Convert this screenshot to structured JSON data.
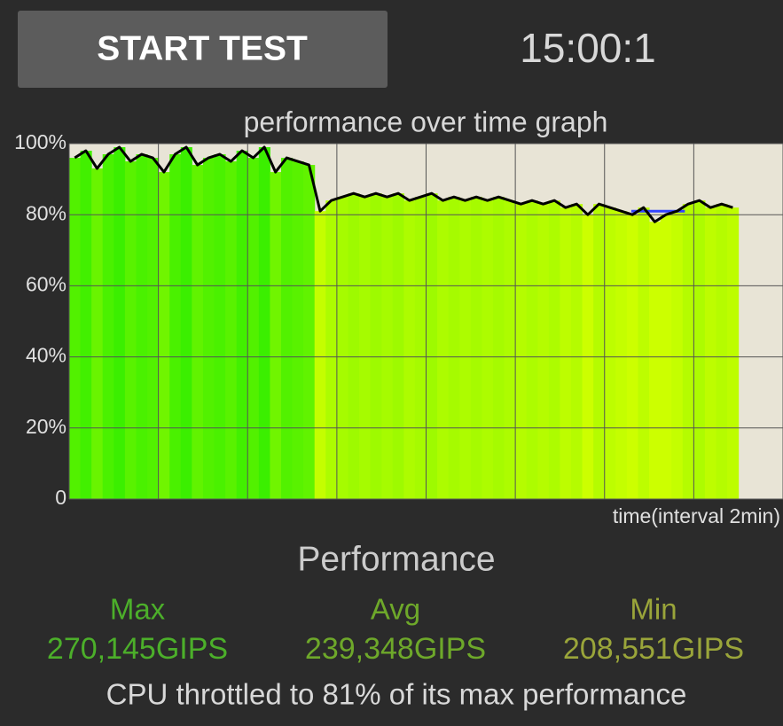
{
  "button": {
    "label": "START TEST"
  },
  "timer": "15:00:1",
  "chart_data": {
    "type": "line",
    "title": "performance over time graph",
    "x_label": "time(interval 2min)",
    "x": [
      0,
      0.25,
      0.5,
      0.75,
      1,
      1.25,
      1.5,
      1.75,
      2,
      2.25,
      2.5,
      2.75,
      3,
      3.25,
      3.5,
      3.75,
      4,
      4.25,
      4.5,
      4.75,
      5,
      5.25,
      5.5,
      5.75,
      6,
      6.25,
      6.5,
      6.75,
      7,
      7.25,
      7.5,
      7.75,
      8,
      8.25,
      8.5,
      8.75,
      9,
      9.25,
      9.5,
      9.75,
      10,
      10.25,
      10.5,
      10.75,
      11,
      11.25,
      11.5,
      11.75,
      12,
      12.25,
      12.5,
      12.75,
      13,
      13.25,
      13.5,
      13.75,
      14,
      14.25,
      14.5,
      14.75
    ],
    "series": [
      {
        "color": "#000000",
        "values": [
          96,
          98,
          93,
          97,
          99,
          95,
          97,
          96,
          92,
          97,
          99,
          94,
          96,
          97,
          95,
          98,
          96,
          99,
          92,
          96,
          95,
          94,
          81,
          84,
          85,
          86,
          85,
          86,
          85,
          86,
          84,
          85,
          86,
          84,
          85,
          84,
          85,
          84,
          85,
          84,
          83,
          84,
          83,
          84,
          82,
          83,
          80,
          83,
          82,
          81,
          80,
          82,
          78,
          80,
          81,
          83,
          84,
          82,
          83,
          82
        ]
      }
    ],
    "reference": {
      "value": 81,
      "x": [
        12.6,
        13.8
      ],
      "color": "#3344ff"
    },
    "fill_color_high": "#33ee00",
    "fill_color_low": "#ccff00",
    "xlim": [
      0,
      16
    ],
    "xticks": [
      0,
      2,
      4,
      6,
      8,
      10,
      12,
      14,
      16
    ],
    "ylim": [
      0,
      100
    ],
    "yticks": [
      0,
      {
        "value": 20,
        "label": "20%"
      },
      {
        "value": 40,
        "label": "40%"
      },
      {
        "value": 60,
        "label": "60%"
      },
      {
        "value": 80,
        "label": "80%"
      },
      {
        "value": 100,
        "label": "100%"
      }
    ],
    "grid": true
  },
  "performance": {
    "title": "Performance",
    "stats": [
      {
        "label": "Max",
        "value": "270,145GIPS",
        "color": "#4caf2a"
      },
      {
        "label": "Avg",
        "value": "239,348GIPS",
        "color": "#6ea82a"
      },
      {
        "label": "Min",
        "value": "208,551GIPS",
        "color": "#9aa53a"
      }
    ],
    "summary": "CPU throttled to 81% of its max performance"
  }
}
